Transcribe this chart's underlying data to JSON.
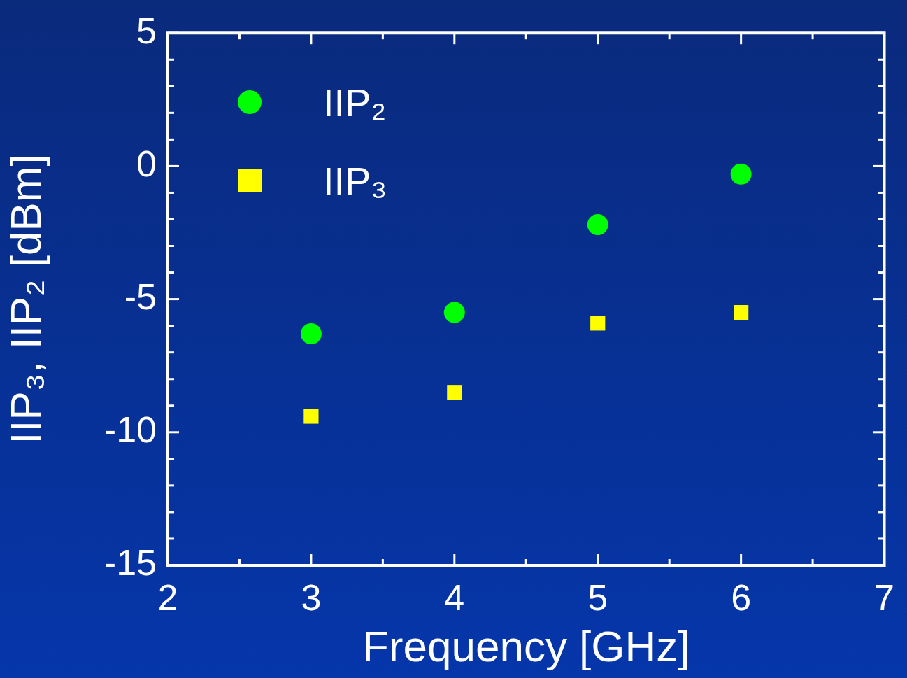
{
  "chart_data": {
    "type": "scatter",
    "xlabel": "Frequency [GHz]",
    "ylabel": "IIP₃, IIP₂ [dBm]",
    "x": [
      3,
      4,
      5,
      6
    ],
    "series": [
      {
        "name": "IIP₂",
        "color": "#00ff00",
        "marker": "circle",
        "values": [
          -6.3,
          -5.5,
          -2.2,
          -0.3
        ]
      },
      {
        "name": "IIP₃",
        "color": "#ffff00",
        "marker": "square",
        "values": [
          -9.4,
          -8.5,
          -5.9,
          -5.5
        ]
      }
    ],
    "xlim": [
      2,
      7
    ],
    "xticks": [
      2,
      3,
      4,
      5,
      6,
      7
    ],
    "ylim": [
      -15,
      5
    ],
    "yticks": [
      -15,
      -10,
      -5,
      0,
      5
    ],
    "grid": false,
    "legend": "top left"
  }
}
